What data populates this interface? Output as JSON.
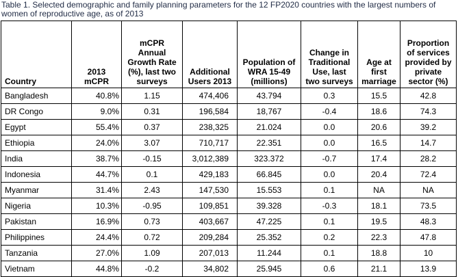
{
  "caption": "Table 1. Selected demographic and family planning parameters for the 12 FP2020 countries with the largest numbers of women of reproductive age, as of 2013",
  "columns": [
    "Country",
    "2013 mCPR",
    "mCPR Annual Growth Rate (%), last two surveys",
    "Additional Users 2013",
    "Population of WRA 15-49 (millions)",
    "Change in Traditional Use, last two surveys",
    "Age at first marriage",
    "Proportion of services provided by private sector (%)"
  ],
  "rows": [
    [
      "Bangladesh",
      "40.8%",
      "1.15",
      "474,406",
      "43.794",
      "0.3",
      "15.5",
      "42.8"
    ],
    [
      "DR Congo",
      "9.0%",
      "0.31",
      "196,584",
      "18,767",
      "-0.4",
      "18.6",
      "74.3"
    ],
    [
      "Egypt",
      "55.4%",
      "0.37",
      "238,325",
      "21.024",
      "0.0",
      "20.6",
      "39.2"
    ],
    [
      "Ethiopia",
      "24.0%",
      "3.07",
      "710,717",
      "22.351",
      "0.0",
      "16.5",
      "14.7"
    ],
    [
      "India",
      "38.7%",
      "-0.15",
      "3,012,389",
      "323.372",
      "-0.7",
      "17.4",
      "28.2"
    ],
    [
      "Indonesia",
      "44.7%",
      "0.1",
      "429,183",
      "66.845",
      "0.0",
      "20.4",
      "72.4"
    ],
    [
      "Myanmar",
      "31.4%",
      "2.43",
      "147,530",
      "15.553",
      "0.1",
      "NA",
      "NA"
    ],
    [
      "Nigeria",
      "10.3%",
      "-0.95",
      "109,851",
      "39.328",
      "-0.3",
      "18.1",
      "73.5"
    ],
    [
      "Pakistan",
      "16.9%",
      "0.73",
      "403,667",
      "47.225",
      "0.1",
      "19.5",
      "48.3"
    ],
    [
      "Philippines",
      "24.4%",
      "0.72",
      "209,284",
      "25.352",
      "0.2",
      "22.3",
      "47.8"
    ],
    [
      "Tanzania",
      "27.0%",
      "1.09",
      "207,013",
      "11.244",
      "0.1",
      "18.8",
      "10"
    ],
    [
      "Vietnam",
      "44.8%",
      "-0.2",
      "34,802",
      "25.945",
      "0.6",
      "21.1",
      "13.9"
    ]
  ]
}
